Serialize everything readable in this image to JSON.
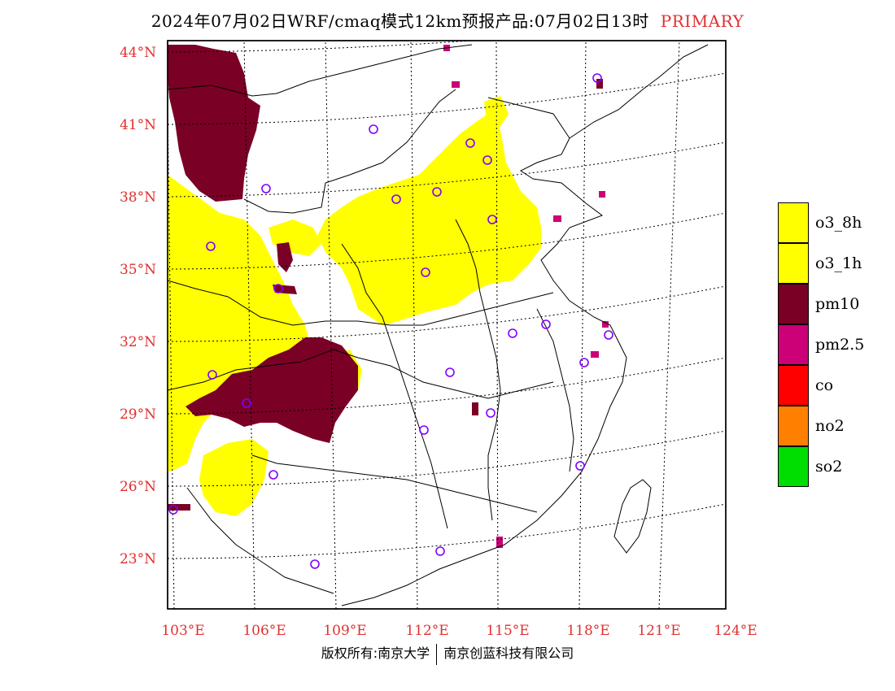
{
  "header": {
    "title": "2024年07月02日WRF/cmaq模式12km预报产品:07月02日13时",
    "tag": "PRIMARY"
  },
  "axes": {
    "lat_labels": [
      "44°N",
      "41°N",
      "38°N",
      "35°N",
      "32°N",
      "29°N",
      "26°N",
      "23°N"
    ],
    "lon_labels": [
      "103°E",
      "106°E",
      "109°E",
      "112°E",
      "115°E",
      "118°E",
      "121°E",
      "124°E"
    ]
  },
  "legend": [
    {
      "label": "o3_8h",
      "color": "#ffff00"
    },
    {
      "label": "o3_1h",
      "color": "#ffff00"
    },
    {
      "label": "pm10",
      "color": "#7a0026"
    },
    {
      "label": "pm2.5",
      "color": "#cc0077"
    },
    {
      "label": "co",
      "color": "#ff0000"
    },
    {
      "label": "no2",
      "color": "#ff8000"
    },
    {
      "label": "so2",
      "color": "#00dd00"
    }
  ],
  "colors": {
    "o3": "#ffff00",
    "pm10": "#7a0026",
    "pm25": "#cc0077",
    "station_marker": "#8000ff",
    "axis_label": "#e03030"
  },
  "footer": {
    "left": "版权所有:南京大学",
    "right": "南京创蓝科技有限公司"
  }
}
